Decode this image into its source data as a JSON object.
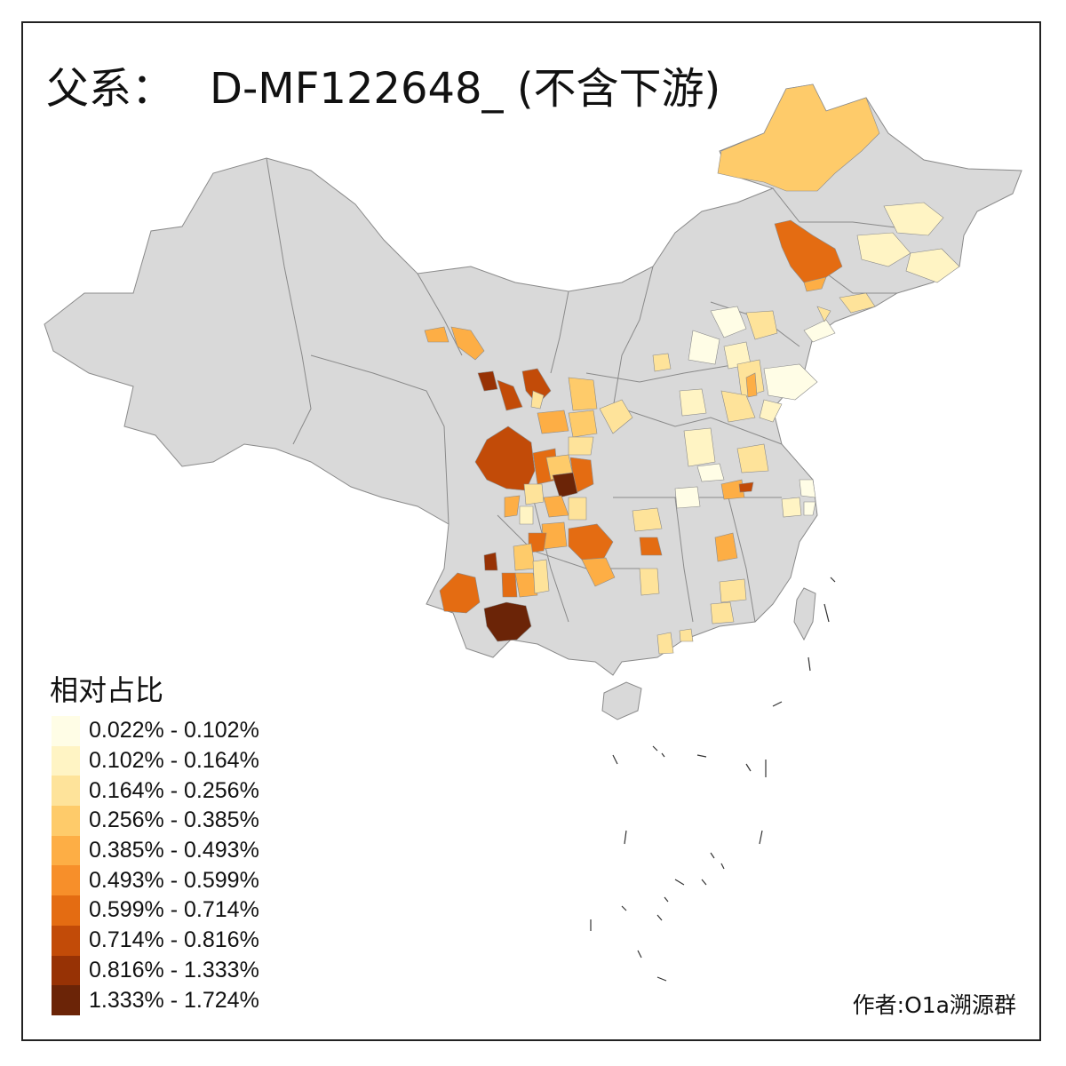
{
  "title": {
    "prefix": "父系：",
    "haplogroup": "D-MF122648_ (不含下游)"
  },
  "legend": {
    "title": "相对占比",
    "items": [
      {
        "label": "0.022% - 0.102%",
        "color": "#fffde6"
      },
      {
        "label": "0.102% - 0.164%",
        "color": "#fff4c4"
      },
      {
        "label": "0.164% - 0.256%",
        "color": "#fee39a"
      },
      {
        "label": "0.256% - 0.385%",
        "color": "#fecb6a"
      },
      {
        "label": "0.385% - 0.493%",
        "color": "#fdae45"
      },
      {
        "label": "0.493% - 0.599%",
        "color": "#f78f2a"
      },
      {
        "label": "0.599% - 0.714%",
        "color": "#e46c12"
      },
      {
        "label": "0.714% - 0.816%",
        "color": "#c24b08"
      },
      {
        "label": "0.816% - 1.333%",
        "color": "#973205"
      },
      {
        "label": "1.333% - 1.724%",
        "color": "#6b2407"
      }
    ]
  },
  "credit": "作者:O1a溯源群",
  "map": {
    "base_color": "#d9d9d9",
    "border_color": "#8a8a8a"
  }
}
